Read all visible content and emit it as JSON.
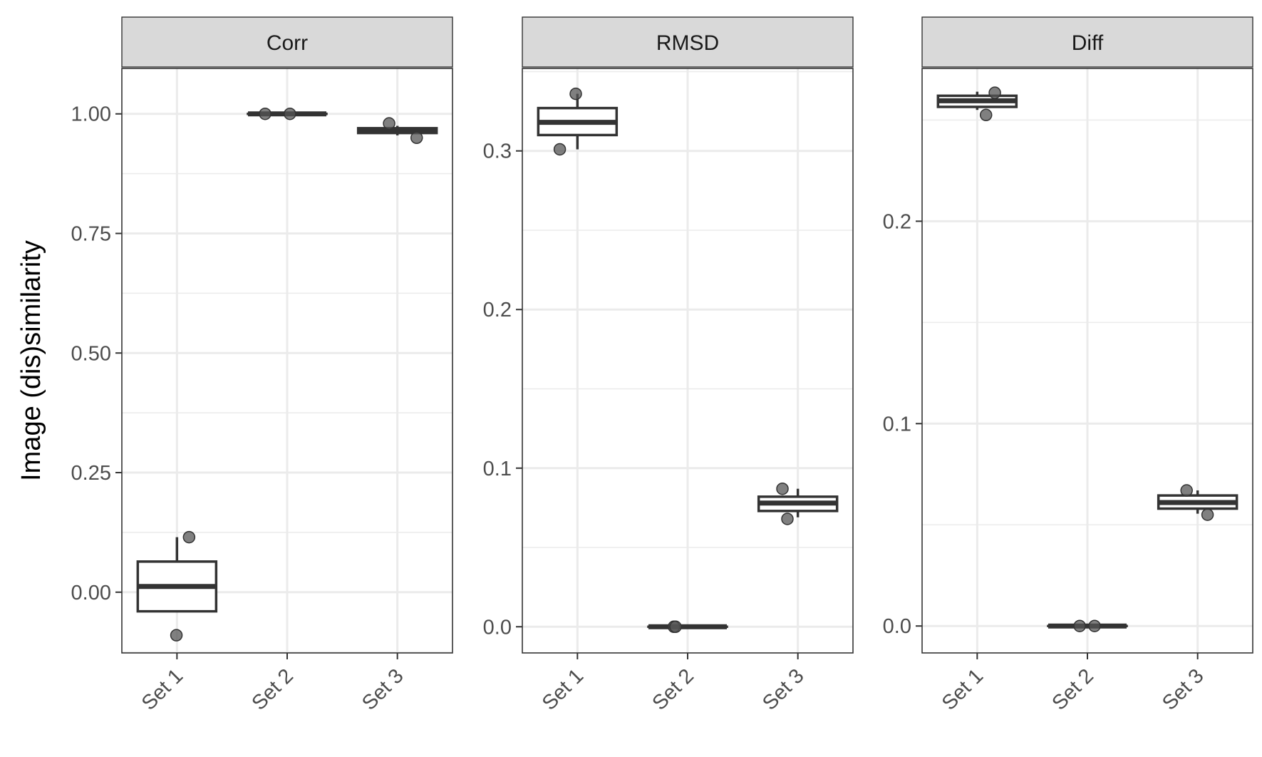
{
  "chart_data": {
    "type": "box",
    "ylabel": "Image (dis)similarity",
    "categories": [
      "Set 1",
      "Set 2",
      "Set 3"
    ],
    "panels": [
      {
        "name": "Corr",
        "ylim": [
          -0.127,
          1.095
        ],
        "y_ticks": [
          0.0,
          0.25,
          0.5,
          0.75,
          1.0
        ],
        "y_tick_labels": [
          "0.00",
          "0.25",
          "0.50",
          "0.75",
          "1.00"
        ],
        "y_minor": [
          -0.125,
          0.125,
          0.375,
          0.625,
          0.875
        ],
        "boxes": [
          {
            "category": "Set 1",
            "lower_whisker": -0.04,
            "q1": -0.04,
            "median": 0.012,
            "q3": 0.064,
            "upper_whisker": 0.115
          },
          {
            "category": "Set 2",
            "lower_whisker": 1.0,
            "q1": 1.0,
            "median": 1.0,
            "q3": 1.0,
            "upper_whisker": 1.0
          },
          {
            "category": "Set 3",
            "lower_whisker": 0.955,
            "q1": 0.96,
            "median": 0.965,
            "q3": 0.97,
            "upper_whisker": 0.975
          }
        ],
        "points": [
          {
            "category": "Set 1",
            "jitter": -0.01,
            "y": -0.09
          },
          {
            "category": "Set 1",
            "jitter": 0.22,
            "y": 0.115
          },
          {
            "category": "Set 2",
            "jitter": -0.4,
            "y": 1.0
          },
          {
            "category": "Set 2",
            "jitter": 0.05,
            "y": 1.0
          },
          {
            "category": "Set 3",
            "jitter": -0.15,
            "y": 0.98
          },
          {
            "category": "Set 3",
            "jitter": 0.35,
            "y": 0.95
          }
        ]
      },
      {
        "name": "RMSD",
        "ylim": [
          -0.0165,
          0.352
        ],
        "y_ticks": [
          0.0,
          0.1,
          0.2,
          0.3
        ],
        "y_tick_labels": [
          "0.0",
          "0.1",
          "0.2",
          "0.3"
        ],
        "y_minor": [
          0.05,
          0.15,
          0.25,
          0.35
        ],
        "boxes": [
          {
            "category": "Set 1",
            "lower_whisker": 0.301,
            "q1": 0.31,
            "median": 0.318,
            "q3": 0.327,
            "upper_whisker": 0.336
          },
          {
            "category": "Set 2",
            "lower_whisker": 0.0,
            "q1": 0.0,
            "median": 0.0,
            "q3": 0.0,
            "upper_whisker": 0.0
          },
          {
            "category": "Set 3",
            "lower_whisker": 0.069,
            "q1": 0.073,
            "median": 0.078,
            "q3": 0.082,
            "upper_whisker": 0.087
          }
        ],
        "points": [
          {
            "category": "Set 1",
            "jitter": -0.32,
            "y": 0.301
          },
          {
            "category": "Set 1",
            "jitter": -0.03,
            "y": 0.336
          },
          {
            "category": "Set 2",
            "jitter": -0.25,
            "y": 0.0
          },
          {
            "category": "Set 2",
            "jitter": -0.22,
            "y": 0.0
          },
          {
            "category": "Set 3",
            "jitter": -0.28,
            "y": 0.087
          },
          {
            "category": "Set 3",
            "jitter": -0.19,
            "y": 0.068
          }
        ]
      },
      {
        "name": "Diff",
        "ylim": [
          -0.0133,
          0.2755
        ],
        "y_ticks": [
          0.0,
          0.1,
          0.2
        ],
        "y_tick_labels": [
          "0.0",
          "0.1",
          "0.2"
        ],
        "y_minor": [
          0.05,
          0.15,
          0.25
        ],
        "boxes": [
          {
            "category": "Set 1",
            "lower_whisker": 0.255,
            "q1": 0.2565,
            "median": 0.2595,
            "q3": 0.262,
            "upper_whisker": 0.264
          },
          {
            "category": "Set 2",
            "lower_whisker": 0.0,
            "q1": 0.0,
            "median": 0.0,
            "q3": 0.0,
            "upper_whisker": 0.0
          },
          {
            "category": "Set 3",
            "lower_whisker": 0.0555,
            "q1": 0.058,
            "median": 0.061,
            "q3": 0.0645,
            "upper_whisker": 0.067
          }
        ],
        "points": [
          {
            "category": "Set 1",
            "jitter": 0.16,
            "y": 0.2525
          },
          {
            "category": "Set 1",
            "jitter": 0.32,
            "y": 0.2635
          },
          {
            "category": "Set 2",
            "jitter": -0.14,
            "y": 0.0
          },
          {
            "category": "Set 2",
            "jitter": 0.13,
            "y": 0.0
          },
          {
            "category": "Set 3",
            "jitter": -0.2,
            "y": 0.067
          },
          {
            "category": "Set 3",
            "jitter": 0.18,
            "y": 0.055
          }
        ]
      }
    ]
  }
}
